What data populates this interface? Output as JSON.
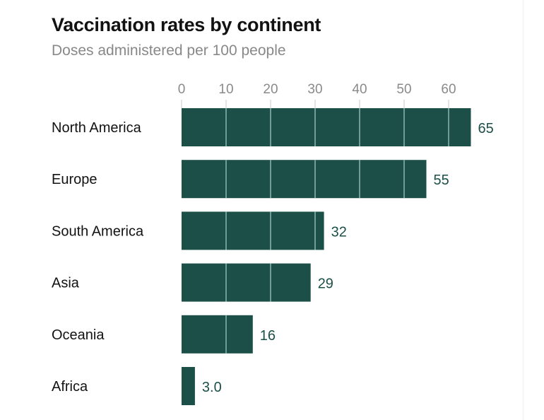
{
  "chart_data": {
    "type": "bar",
    "orientation": "horizontal",
    "title": "Vaccination rates by continent",
    "subtitle": "Doses administered per 100 people",
    "xlabel": "",
    "ylabel": "",
    "categories": [
      "North America",
      "Europe",
      "South America",
      "Asia",
      "Oceania",
      "Africa"
    ],
    "values": [
      65,
      55,
      32,
      29,
      16,
      3.0
    ],
    "value_labels": [
      "65",
      "55",
      "32",
      "29",
      "16",
      "3.0"
    ],
    "xticks": [
      0,
      10,
      20,
      30,
      40,
      50,
      60
    ],
    "xlim": [
      0,
      65
    ],
    "grid": "vertical, drawn over bars",
    "legend": "none",
    "colors": {
      "bar": "#1b4f47",
      "gridline": "#a8d0c6",
      "tick_text": "#8a8a8a",
      "value_text": "#1b4f47"
    }
  }
}
